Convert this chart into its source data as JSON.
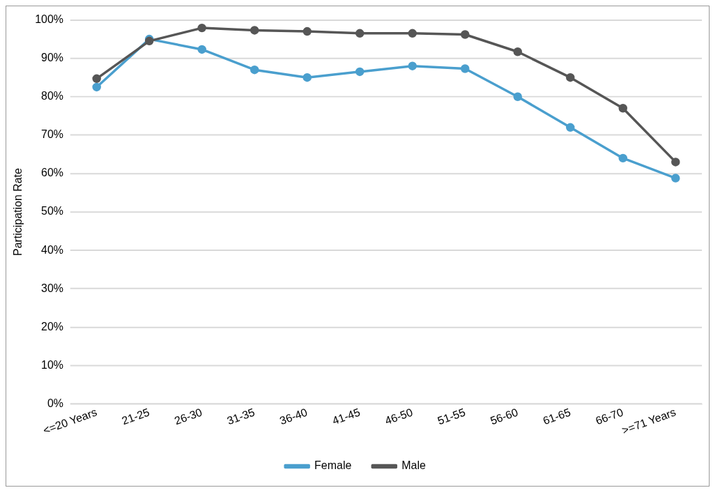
{
  "chart_data": {
    "type": "line",
    "ylabel": "Participation Rate",
    "categories": [
      "<=20 Years",
      "21-25",
      "26-30",
      "31-35",
      "36-40",
      "41-45",
      "46-50",
      "51-55",
      "56-60",
      "61-65",
      "66-70",
      ">=71 Years"
    ],
    "series": [
      {
        "name": "Female",
        "color": "#4a9fce",
        "values": [
          82.5,
          95,
          92.3,
          87,
          85,
          86.5,
          88,
          87.3,
          80,
          72,
          64,
          58.8
        ]
      },
      {
        "name": "Male",
        "color": "#565656",
        "values": [
          84.7,
          94.5,
          97.9,
          97.3,
          97,
          96.5,
          96.5,
          96.2,
          91.7,
          85,
          77,
          63
        ]
      }
    ],
    "ylim": [
      0,
      100
    ],
    "yticks": [
      {
        "value": 0,
        "label": "0%"
      },
      {
        "value": 10,
        "label": "10%"
      },
      {
        "value": 20,
        "label": "20%"
      },
      {
        "value": 30,
        "label": "30%"
      },
      {
        "value": 40,
        "label": "40%"
      },
      {
        "value": 50,
        "label": "50%"
      },
      {
        "value": 60,
        "label": "60%"
      },
      {
        "value": 70,
        "label": "70%"
      },
      {
        "value": 80,
        "label": "80%"
      },
      {
        "value": 90,
        "label": "90%"
      },
      {
        "value": 100,
        "label": "100%"
      }
    ],
    "grid": "y",
    "legend": "bottom",
    "marker": "circle",
    "line_style": "solid"
  }
}
